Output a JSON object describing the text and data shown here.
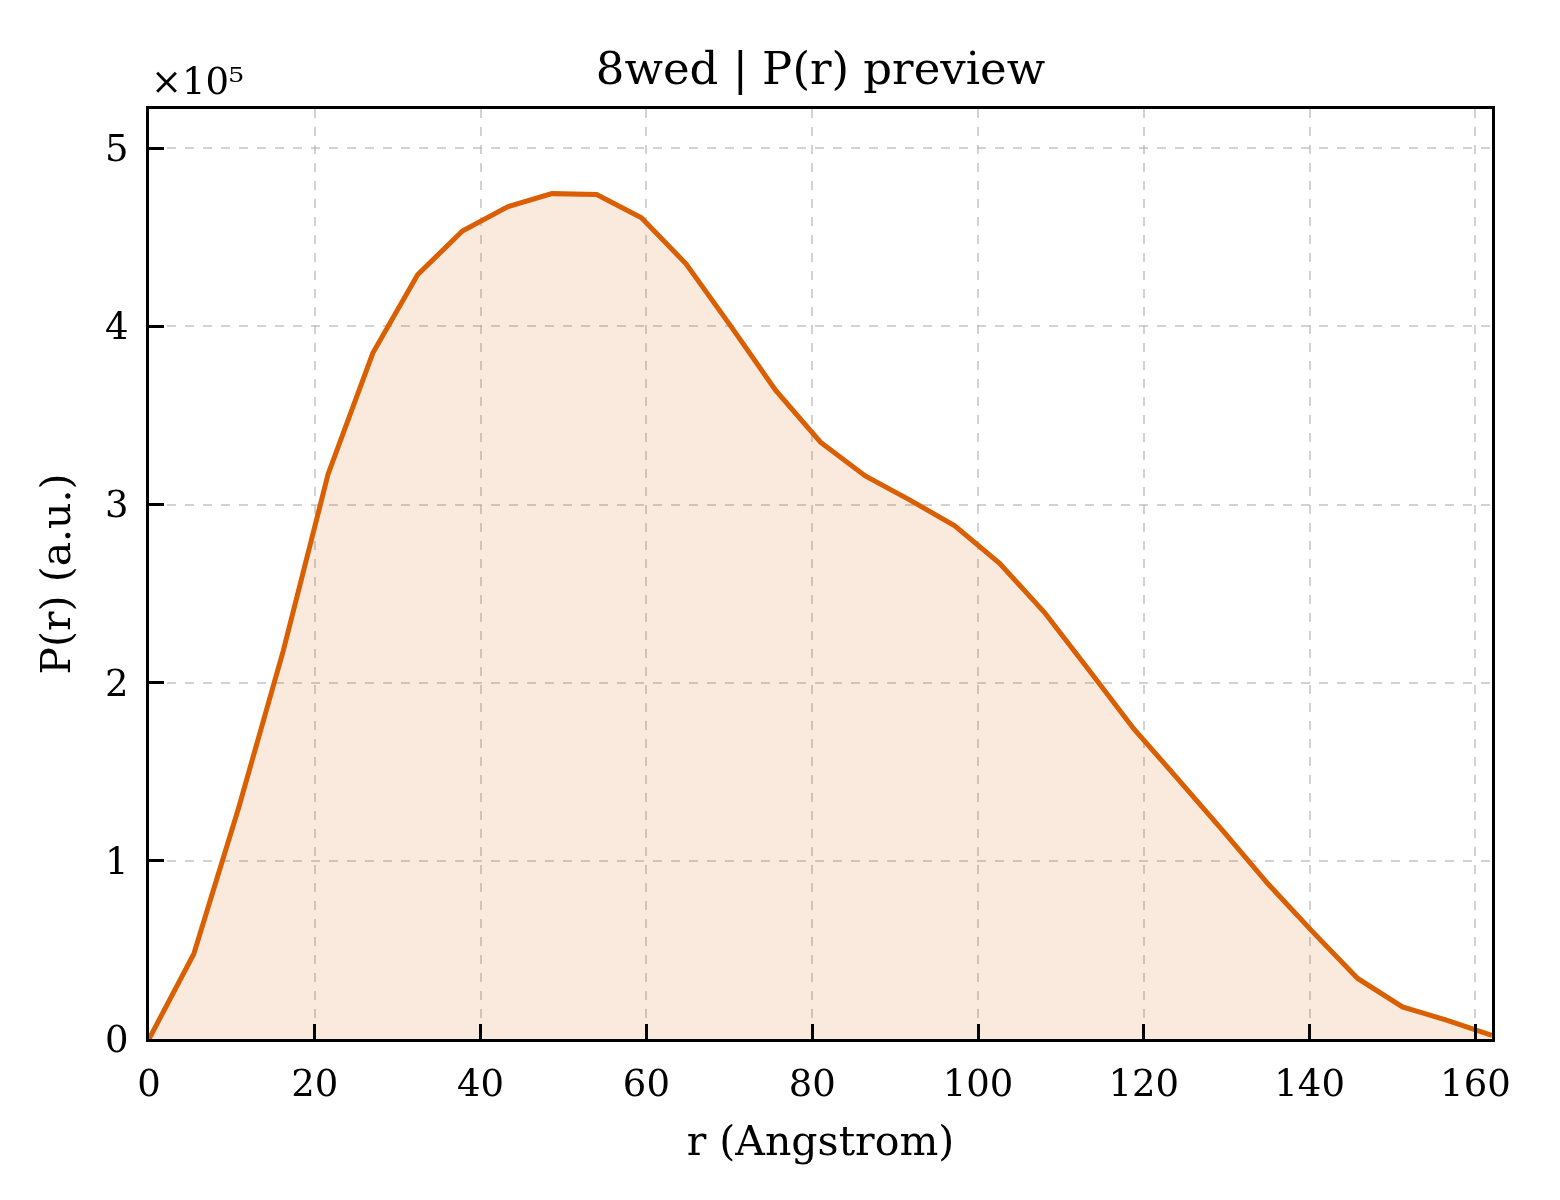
{
  "chart_data": {
    "type": "area",
    "title": "8wed | P(r) preview",
    "xlabel": "r (Angstrom)",
    "ylabel": "P(r) (a.u.)",
    "annotations": [
      "×10⁵"
    ],
    "x": [
      0,
      5.4,
      10.8,
      16.2,
      21.6,
      27,
      32.4,
      37.8,
      43.2,
      48.6,
      54,
      59.4,
      64.8,
      70.2,
      75.6,
      81,
      86.4,
      91.8,
      97.2,
      102.6,
      108,
      113.4,
      118.8,
      124.2,
      129.6,
      135,
      140.4,
      145.8,
      151.2,
      156.6,
      162
    ],
    "series": [
      {
        "color": "#d95f02",
        "values": [
          0,
          0.477,
          1.295,
          2.18,
          3.17,
          3.85,
          4.29,
          4.535,
          4.67,
          4.745,
          4.74,
          4.61,
          4.35,
          4.0,
          3.64,
          3.35,
          3.16,
          3.025,
          2.88,
          2.67,
          2.395,
          2.07,
          1.74,
          1.455,
          1.165,
          0.87,
          0.6,
          0.34,
          0.18,
          0.105,
          0.02
        ]
      }
    ],
    "xlim": [
      0,
      162
    ],
    "xticks": [
      0,
      20,
      40,
      60,
      80,
      100,
      120,
      140,
      160
    ],
    "ylim": [
      0,
      5.22
    ],
    "yticks": [
      0,
      1,
      2,
      3,
      4,
      5
    ],
    "grid": true,
    "marker": "none"
  }
}
